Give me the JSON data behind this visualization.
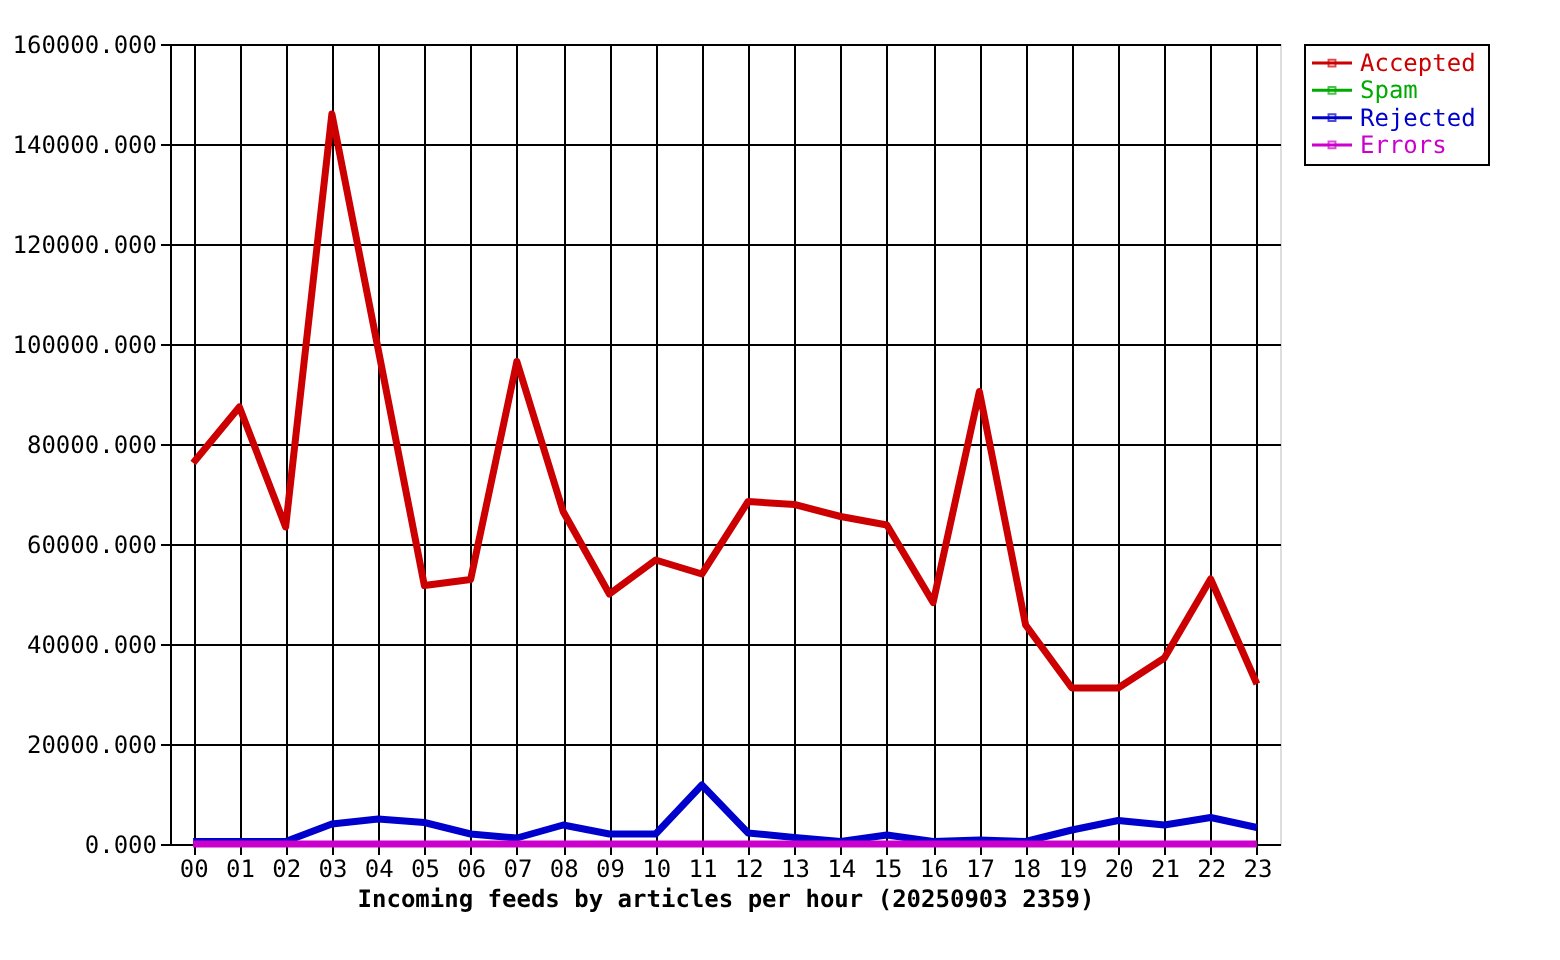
{
  "chart_data": {
    "type": "line",
    "xlabel": "Incoming feeds by articles per hour (20250903 2359)",
    "categories": [
      "00",
      "01",
      "02",
      "03",
      "04",
      "05",
      "06",
      "07",
      "08",
      "09",
      "10",
      "11",
      "12",
      "13",
      "14",
      "15",
      "16",
      "17",
      "18",
      "19",
      "20",
      "21",
      "22",
      "23"
    ],
    "series": [
      {
        "name": "Accepted",
        "color": "#cc0000",
        "values": [
          76200,
          87400,
          63400,
          146000,
          99000,
          51700,
          52900,
          96500,
          66500,
          50000,
          56800,
          54000,
          68500,
          67900,
          65500,
          63800,
          48300,
          90500,
          43800,
          31200,
          31200,
          37200,
          53000,
          32000
        ]
      },
      {
        "name": "Spam",
        "color": "#00aa00",
        "values": [
          null,
          null,
          null,
          null,
          null,
          null,
          null,
          null,
          null,
          null,
          null,
          null,
          null,
          null,
          null,
          null,
          null,
          null,
          null,
          null,
          null,
          null,
          null,
          null
        ]
      },
      {
        "name": "Rejected",
        "color": "#0000cc",
        "values": [
          500,
          500,
          500,
          4000,
          5000,
          4300,
          2000,
          1200,
          3800,
          2000,
          2000,
          11800,
          2200,
          1300,
          500,
          1800,
          500,
          800,
          500,
          2800,
          4700,
          3800,
          5300,
          3300
        ]
      },
      {
        "name": "Errors",
        "color": "#cc00cc",
        "values": [
          0,
          0,
          0,
          0,
          0,
          0,
          0,
          0,
          0,
          0,
          0,
          0,
          0,
          0,
          0,
          0,
          0,
          0,
          0,
          0,
          0,
          0,
          0,
          0
        ]
      }
    ],
    "ylim": [
      0,
      160000
    ],
    "yticks": [
      {
        "value": 0,
        "label": "0.000"
      },
      {
        "value": 20000,
        "label": "20000.000"
      },
      {
        "value": 40000,
        "label": "40000.000"
      },
      {
        "value": 60000,
        "label": "60000.000"
      },
      {
        "value": 80000,
        "label": "80000.000"
      },
      {
        "value": 100000,
        "label": "100000.000"
      },
      {
        "value": 120000,
        "label": "120000.000"
      },
      {
        "value": 140000,
        "label": "140000.000"
      },
      {
        "value": 160000,
        "label": "160000.000"
      }
    ],
    "grid": true,
    "legend": "top right"
  }
}
